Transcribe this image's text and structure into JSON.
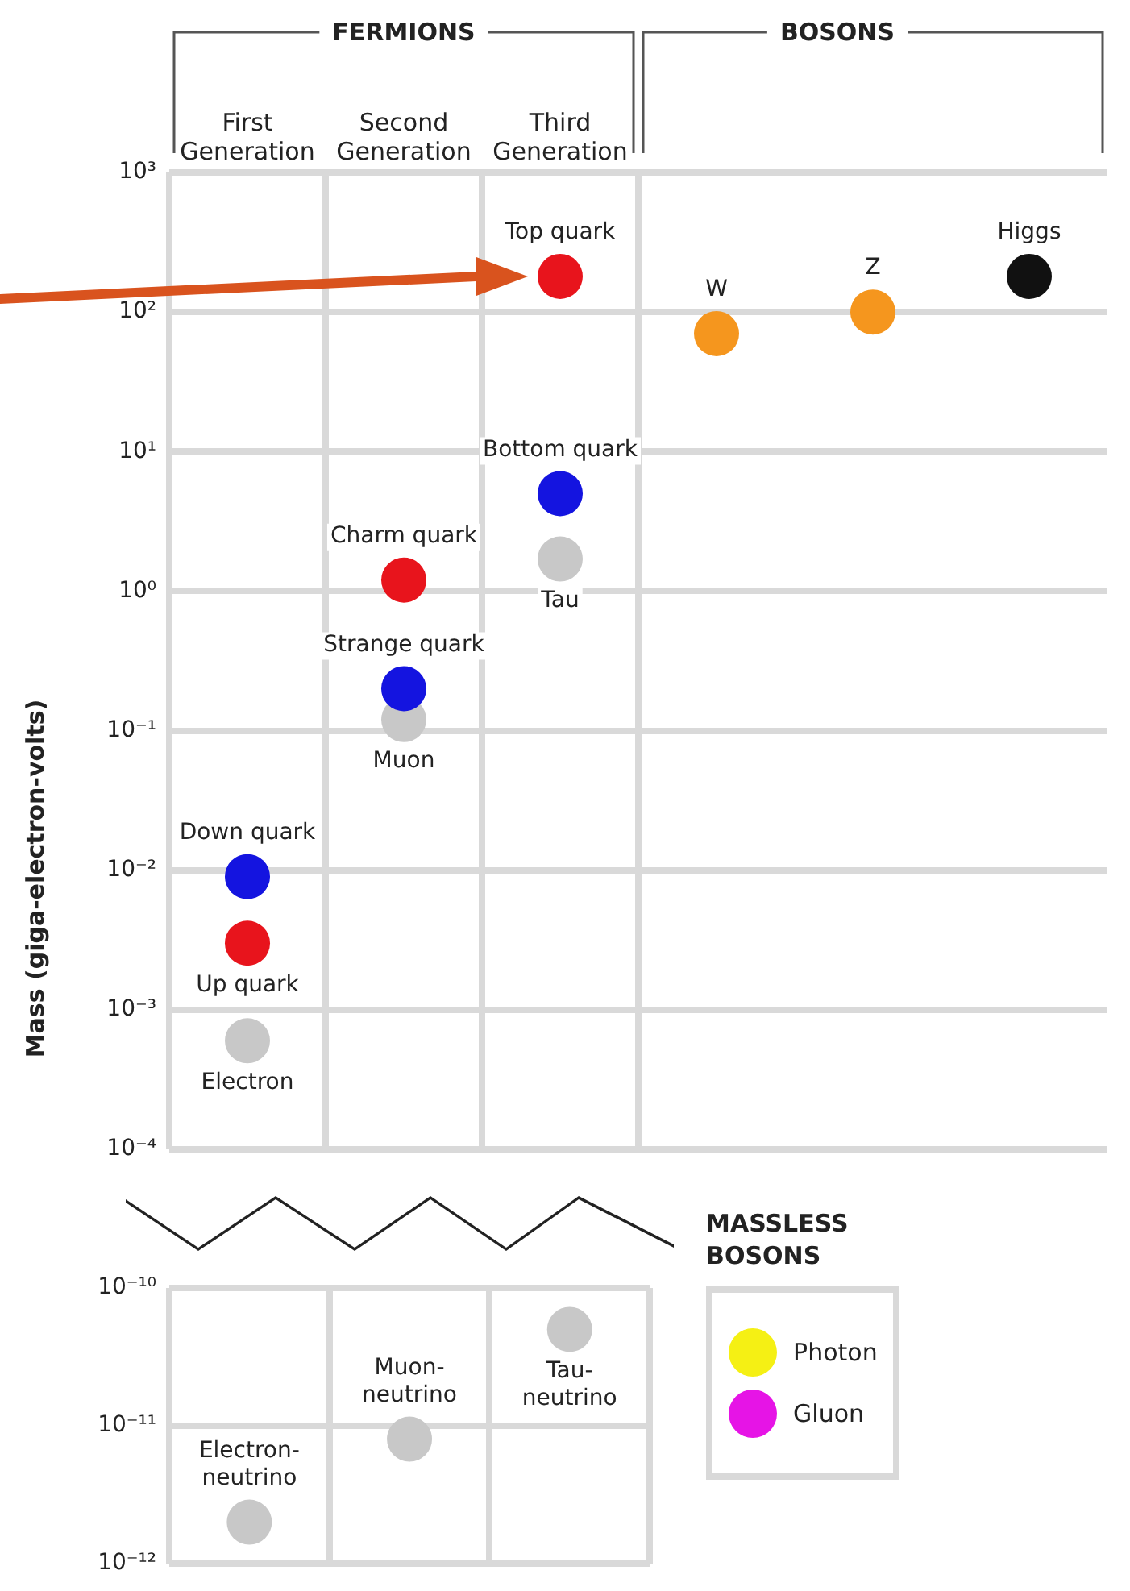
{
  "chart_data": [
    {
      "type": "scatter",
      "ylabel": "Mass (giga-electron-volts)",
      "annotations": [
        "FERMIONS",
        "BOSONS"
      ],
      "categories": [
        "First Generation",
        "Second Generation",
        "Third Generation",
        null,
        null,
        null
      ],
      "log": "y",
      "ylim": [
        0.0001,
        1000
      ],
      "yticks": [
        {
          "value": 1000,
          "label": "10³"
        },
        {
          "value": 100,
          "label": "10²"
        },
        {
          "value": 10,
          "label": "10¹"
        },
        {
          "value": 1,
          "label": "10⁰"
        },
        {
          "value": 0.1,
          "label": "10⁻¹"
        },
        {
          "value": 0.01,
          "label": "10⁻²"
        },
        {
          "value": 0.001,
          "label": "10⁻³"
        },
        {
          "value": 0.0001,
          "label": "10⁻⁴"
        }
      ],
      "grid": true,
      "marker": "circle",
      "legend": false,
      "series": [
        {
          "name": "Top quark",
          "color": "#e8141c",
          "values": [
            null,
            null,
            180,
            null,
            null,
            null
          ]
        },
        {
          "name": "W",
          "color": "#f5961e",
          "values": [
            null,
            null,
            null,
            70,
            null,
            null
          ]
        },
        {
          "name": "Z",
          "color": "#f5961e",
          "values": [
            null,
            null,
            null,
            null,
            100,
            null
          ]
        },
        {
          "name": "Higgs",
          "color": "#111111",
          "values": [
            null,
            null,
            null,
            null,
            null,
            180
          ]
        },
        {
          "name": "Bottom quark",
          "color": "#1414e0",
          "values": [
            null,
            null,
            5,
            null,
            null,
            null
          ]
        },
        {
          "name": "Tau",
          "color": "#c8c8c8",
          "values": [
            null,
            null,
            1.7,
            null,
            null,
            null
          ]
        },
        {
          "name": "Charm quark",
          "color": "#e8141c",
          "values": [
            null,
            1.2,
            null,
            null,
            null,
            null
          ]
        },
        {
          "name": "Strange quark",
          "color": "#1414e0",
          "values": [
            null,
            0.2,
            null,
            null,
            null,
            null
          ]
        },
        {
          "name": "Muon",
          "color": "#c8c8c8",
          "values": [
            null,
            0.12,
            null,
            null,
            null,
            null
          ]
        },
        {
          "name": "Down quark",
          "color": "#1414e0",
          "values": [
            0.009,
            null,
            null,
            null,
            null,
            null
          ]
        },
        {
          "name": "Up quark",
          "color": "#e8141c",
          "values": [
            0.003,
            null,
            null,
            null,
            null,
            null
          ]
        },
        {
          "name": "Electron",
          "color": "#c8c8c8",
          "values": [
            0.0006,
            null,
            null,
            null,
            null,
            null
          ]
        }
      ]
    },
    {
      "type": "scatter",
      "categories": [
        null,
        null,
        null
      ],
      "tick_labels": "y",
      "log": "y",
      "ylim": [
        1e-12,
        1e-10
      ],
      "yticks": [
        {
          "value": 1e-10,
          "label": "10⁻¹⁰"
        },
        {
          "value": 1e-11,
          "label": "10⁻¹¹"
        },
        {
          "value": 1e-12,
          "label": "10⁻¹²"
        }
      ],
      "grid": true,
      "marker": "circle",
      "legend": "right",
      "legend_title": "MASSLESS BOSONS",
      "series": [
        {
          "name": "Electron-neutrino",
          "color": "#c8c8c8",
          "values": [
            2e-12,
            null,
            null
          ]
        },
        {
          "name": "Muon-neutrino",
          "color": "#c8c8c8",
          "values": [
            null,
            8e-12,
            null
          ]
        },
        {
          "name": "Tau-neutrino",
          "color": "#c8c8c8",
          "values": [
            null,
            null,
            5e-11
          ]
        },
        {
          "name": "Photon",
          "color": "#f5f014",
          "values": [
            null,
            null,
            null
          ]
        },
        {
          "name": "Gluon",
          "color": "#e614e6",
          "values": [
            null,
            null,
            null
          ]
        }
      ]
    }
  ]
}
